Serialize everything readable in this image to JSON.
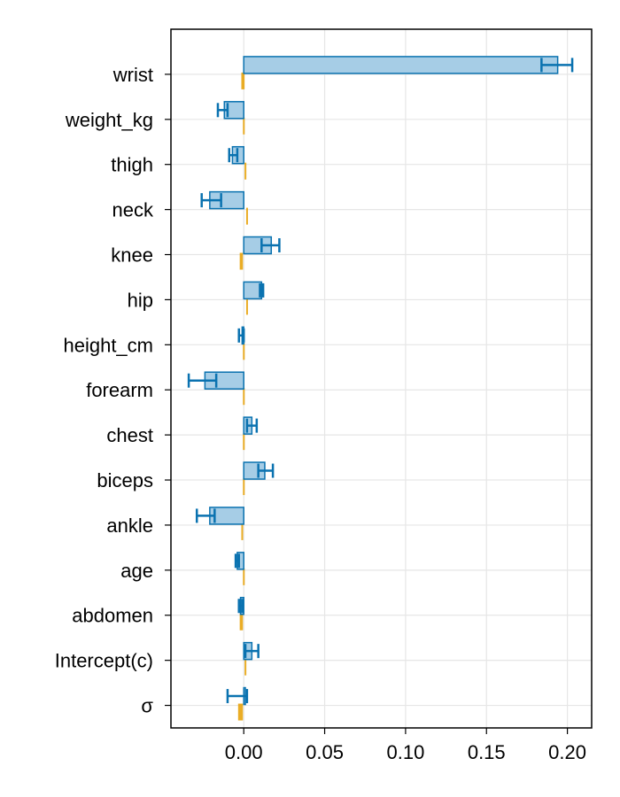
{
  "chart_data": {
    "type": "bar",
    "orientation": "horizontal",
    "title": "",
    "xlabel": "",
    "ylabel": "",
    "xlim": [
      -0.045,
      0.215
    ],
    "xticks": [
      0.0,
      0.05,
      0.1,
      0.15,
      0.2
    ],
    "xtick_labels": [
      "0.00",
      "0.05",
      "0.10",
      "0.15",
      "0.20"
    ],
    "grid": true,
    "legend": "none",
    "colors": {
      "bar_fill": "#a6cde6",
      "bar_edge": "#0a72b0",
      "secondary": "#e69f00",
      "grid": "#e6e6e6",
      "frame": "#000000"
    },
    "categories": [
      "wrist",
      "weight_kg",
      "thigh",
      "neck",
      "knee",
      "hip",
      "height_cm",
      "forearm",
      "chest",
      "biceps",
      "ankle",
      "age",
      "abdomen",
      "Intercept(c)",
      "σ"
    ],
    "series": [
      {
        "values": [
          0.194,
          -0.012,
          -0.007,
          -0.021,
          0.017,
          0.011,
          -0.001,
          -0.024,
          0.005,
          0.013,
          -0.021,
          -0.004,
          -0.002,
          0.005,
          0.001
        ],
        "err_low": [
          0.184,
          -0.016,
          -0.009,
          -0.026,
          0.011,
          0.01,
          -0.003,
          -0.034,
          0.002,
          0.009,
          -0.029,
          -0.005,
          -0.003,
          0.001,
          -0.01
        ],
        "err_high": [
          0.203,
          -0.01,
          -0.004,
          -0.014,
          0.022,
          0.012,
          0.0,
          -0.017,
          0.008,
          0.018,
          -0.018,
          -0.003,
          -0.001,
          0.009,
          0.002
        ]
      },
      {
        "values": [
          0.0,
          0.0,
          0.0,
          0.0,
          0.0,
          0.0,
          0.0,
          0.0,
          0.0,
          0.0,
          0.0,
          0.0,
          0.0,
          0.0,
          0.0
        ],
        "err_low": [
          -0.0015,
          -0.0005,
          0.0005,
          0.0015,
          -0.0025,
          0.0015,
          -0.0005,
          -0.0005,
          -0.0005,
          -0.0005,
          -0.0015,
          -0.0005,
          -0.0025,
          0.0005,
          -0.0035
        ],
        "err_high": [
          0.0005,
          0.0005,
          0.0015,
          0.0025,
          -0.0005,
          0.0025,
          0.0005,
          0.0005,
          0.0005,
          0.0005,
          -0.0005,
          0.0005,
          -0.0005,
          0.0015,
          -0.0005
        ]
      }
    ]
  }
}
